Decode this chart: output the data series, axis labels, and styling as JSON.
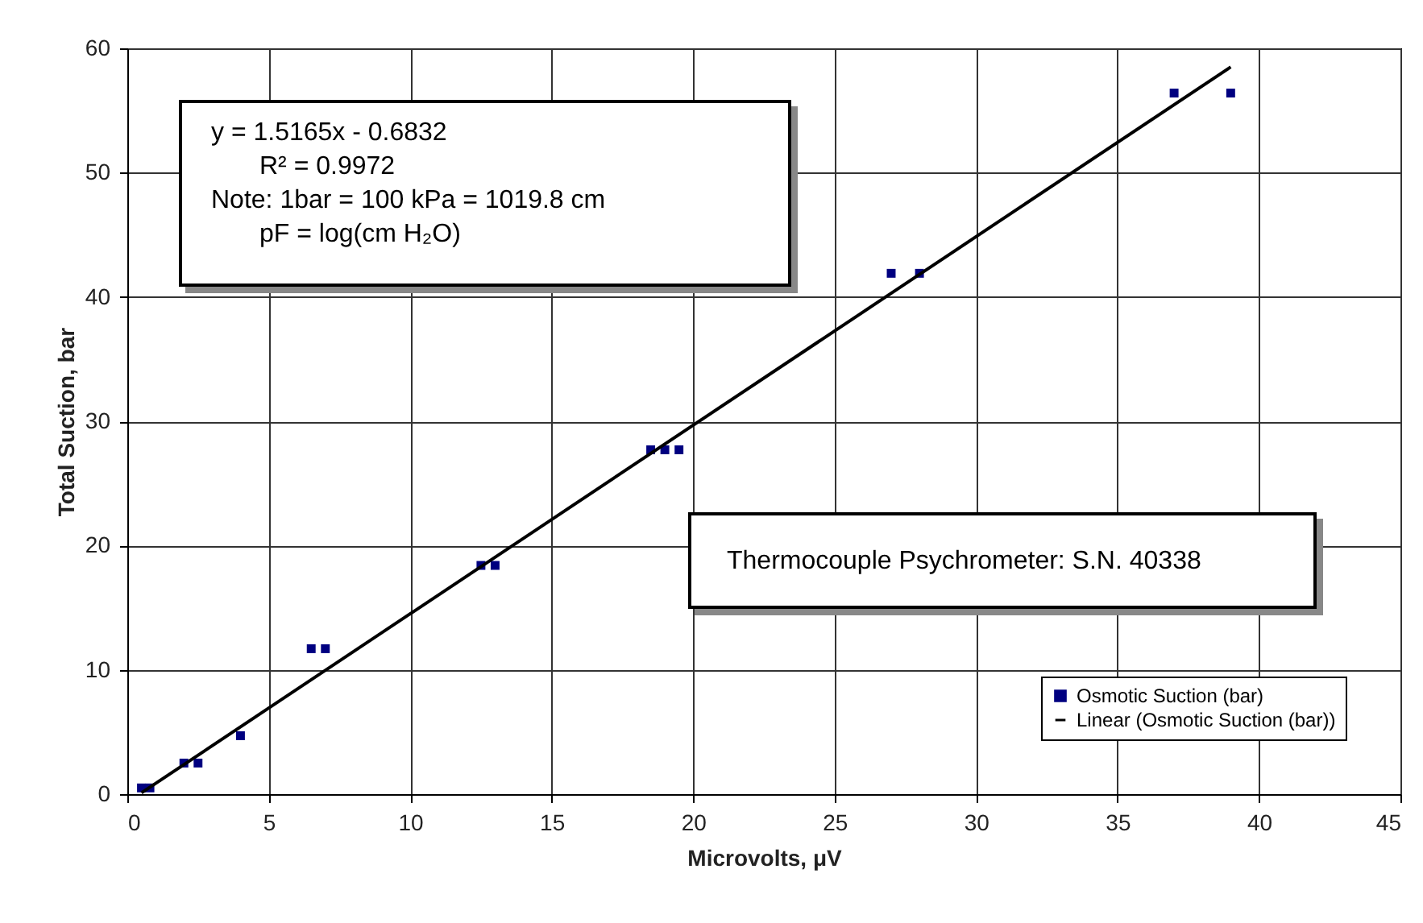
{
  "chart_data": {
    "type": "scatter",
    "xlabel": "Microvolts, μV",
    "ylabel": "Total Suction, bar",
    "xlim": [
      0,
      45
    ],
    "xticks": [
      0,
      5,
      10,
      15,
      20,
      25,
      30,
      35,
      40,
      45
    ],
    "ylim": [
      0,
      60
    ],
    "yticks": [
      0,
      10,
      20,
      30,
      40,
      50,
      60
    ],
    "grid": true,
    "legend": "bottom right",
    "marker": "square",
    "series": [
      {
        "name": "Osmotic Suction (bar)",
        "color": "#000080",
        "x": [
          0.5,
          0.8,
          2,
          2.5,
          4,
          6.5,
          7,
          12.5,
          13,
          18.5,
          19,
          19.5,
          27,
          28,
          37,
          39
        ],
        "values": [
          0.5,
          0.5,
          2.5,
          2.5,
          4.7,
          11.7,
          11.7,
          18.4,
          18.4,
          27.7,
          27.7,
          27.7,
          41.9,
          41.9,
          56.4,
          56.4
        ]
      },
      {
        "name": "Linear (Osmotic Suction (bar))",
        "type": "line",
        "marker": "none",
        "color": "#000000",
        "line_style": "solid",
        "x": [
          0.5,
          39
        ],
        "values": [
          0.1,
          58.5
        ]
      }
    ],
    "annotations": [
      "y = 1.5165x - 0.6832",
      "R² = 0.9972",
      "Note: 1bar = 100 kPa = 1019.8 cm",
      "pF = log(cm H₂O)",
      "Thermocouple Psychrometer: S.N. 40338"
    ]
  }
}
